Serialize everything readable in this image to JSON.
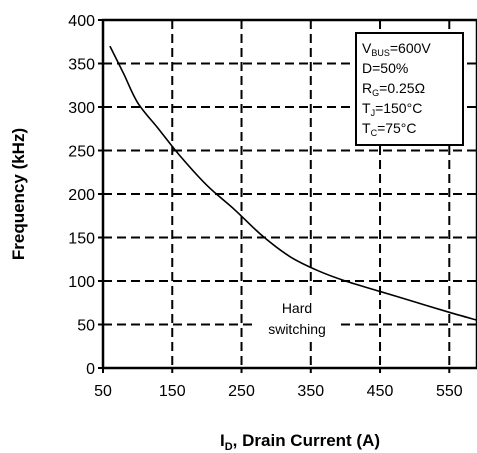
{
  "chart_data": {
    "type": "line",
    "xlabel_main": "I",
    "xlabel_sub": "D",
    "xlabel_rest": ", Drain Current (A)",
    "ylabel": "Frequency (kHz)",
    "xlim": [
      50,
      590
    ],
    "ylim": [
      0,
      400
    ],
    "x_ticks": [
      50,
      150,
      250,
      350,
      450,
      550
    ],
    "y_ticks": [
      0,
      50,
      100,
      150,
      200,
      250,
      300,
      350,
      400
    ],
    "grid": true,
    "series": [
      {
        "x": [
          60,
          80,
          100,
          130,
          160,
          200,
          240,
          280,
          320,
          360,
          400,
          450,
          500,
          550,
          590
        ],
        "y": [
          370,
          338,
          305,
          275,
          245,
          210,
          182,
          152,
          128,
          112,
          100,
          88,
          76,
          64,
          55
        ]
      }
    ],
    "annotation": {
      "line1": "Hard",
      "line2": "switching"
    },
    "conditions": [
      {
        "main": "V",
        "sub": "BUS",
        "rest": "=600V"
      },
      {
        "main": "D=50%",
        "sub": "",
        "rest": ""
      },
      {
        "main": "R",
        "sub": "G",
        "rest": "=0.25Ω"
      },
      {
        "main": "T",
        "sub": "J",
        "rest": "=150°C"
      },
      {
        "main": "T",
        "sub": "C",
        "rest": "=75°C"
      }
    ],
    "colors": {
      "line": "#000000",
      "grid": "#000000",
      "background": "#ffffff"
    }
  }
}
